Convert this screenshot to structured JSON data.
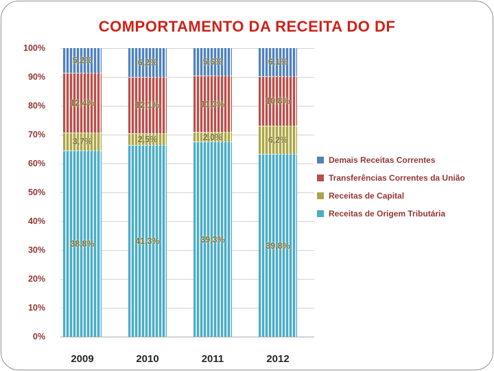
{
  "colors": {
    "title": "#cf2217",
    "y_axis_labels": "#943634",
    "x_axis_labels": "#262626",
    "data_labels": "#7f7433",
    "legend_text": "#943634",
    "gridline": "#d2d2d2"
  },
  "chart_data": {
    "type": "bar",
    "subtype": "stacked-100-percent-column",
    "title": "COMPORTAMENTO DA RECEITA DO DF",
    "categories": [
      "2009",
      "2010",
      "2011",
      "2012"
    ],
    "series": [
      {
        "name": "Demais Receitas Correntes",
        "color": "#4f81bd",
        "stripe_tint": "#dce6f2",
        "values": [
          5.2,
          6.2,
          5.6,
          6.1
        ],
        "labels": [
          "5,2%",
          "6,2%",
          "5,6%",
          "6,1%"
        ]
      },
      {
        "name": "Transferências Correntes da União",
        "color": "#b8504b",
        "stripe_tint": "#f0dbda",
        "values": [
          12.4,
          12.1,
          11.3,
          10.8
        ],
        "labels": [
          "12,4%",
          "12,1%",
          "11,3%",
          "10,8%"
        ]
      },
      {
        "name": "Receitas de Capital",
        "color": "#aaa54a",
        "stripe_tint": "#efecca",
        "values": [
          3.7,
          2.5,
          2.0,
          6.2
        ],
        "labels": [
          "3,7%",
          "2,5%",
          "2,0%",
          "6,2%"
        ]
      },
      {
        "name": "Receitas de Origem Tributária",
        "color": "#4bacc6",
        "stripe_tint": "#d2e9f0",
        "values": [
          38.8,
          41.3,
          39.3,
          39.8
        ],
        "labels": [
          "38,8%",
          "41,3%",
          "39,3%",
          "39,8%"
        ]
      }
    ],
    "stack_order": "series[0] at top of column, columns normalized to 100%",
    "y_ticks": [
      "100%",
      "90%",
      "80%",
      "70%",
      "60%",
      "50%",
      "40%",
      "30%",
      "20%",
      "10%",
      "0%"
    ],
    "ylim": [
      0,
      100
    ],
    "grid": true,
    "legend_position": "right"
  }
}
